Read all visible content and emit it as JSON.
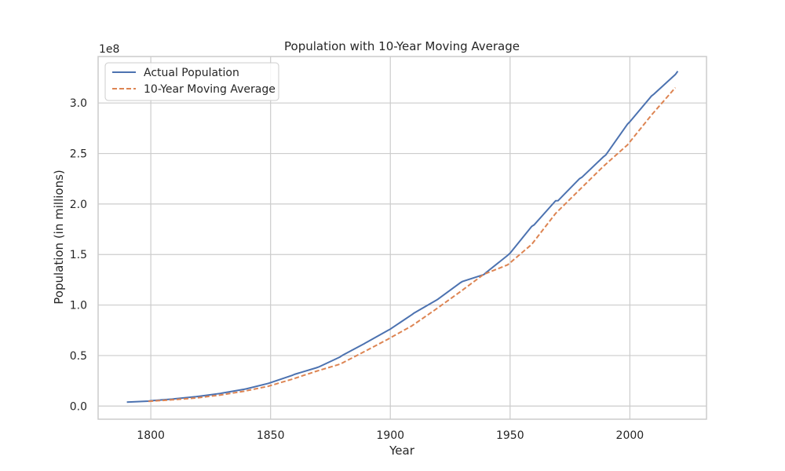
{
  "chart_data": {
    "type": "line",
    "title": "Population with 10-Year Moving Average",
    "xlabel": "Year",
    "ylabel": "Population (in millions)",
    "y_offset_label": "1e8",
    "xlim": [
      1778,
      2032
    ],
    "ylim": [
      -13000000,
      346000000
    ],
    "xticks": [
      1800,
      1850,
      1900,
      1950,
      2000
    ],
    "yticks": [
      0,
      50000000,
      100000000,
      150000000,
      200000000,
      250000000,
      300000000
    ],
    "ytick_labels": [
      "0.0",
      "0.5",
      "1.0",
      "1.5",
      "2.0",
      "2.5",
      "3.0"
    ],
    "grid": true,
    "legend": "upper left",
    "series": [
      {
        "name": "Actual Population",
        "color": "#4c72b0",
        "style": "solid",
        "x": [
          1790,
          1799,
          1800,
          1809,
          1810,
          1819,
          1820,
          1829,
          1830,
          1839,
          1840,
          1849,
          1850,
          1859,
          1860,
          1869,
          1870,
          1879,
          1880,
          1889,
          1890,
          1899,
          1900,
          1909,
          1910,
          1919,
          1920,
          1929,
          1930,
          1939,
          1940,
          1949,
          1950,
          1959,
          1960,
          1969,
          1970,
          1979,
          1980,
          1989,
          1990,
          1999,
          2000,
          2009,
          2010,
          2019,
          2020
        ],
        "y": [
          3900000,
          4900000,
          5300000,
          6900000,
          7200000,
          9300000,
          9600000,
          12500000,
          12900000,
          16600000,
          17100000,
          22400000,
          23200000,
          30400000,
          31400000,
          37800000,
          38600000,
          48600000,
          50200000,
          61600000,
          63000000,
          74900000,
          76200000,
          90500000,
          92200000,
          104500000,
          106000000,
          121700000,
          123200000,
          130100000,
          132200000,
          149200000,
          151300000,
          177800000,
          179300000,
          203200000,
          203300000,
          225100000,
          226500000,
          246800000,
          248700000,
          279000000,
          281400000,
          306800000,
          308700000,
          328200000,
          331500000
        ]
      },
      {
        "name": "10-Year Moving Average",
        "color": "#dd8452",
        "style": "dashed",
        "x": [
          1799,
          1809,
          1819,
          1829,
          1839,
          1849,
          1859,
          1869,
          1879,
          1889,
          1899,
          1909,
          1919,
          1929,
          1939,
          1949,
          1959,
          1969,
          1979,
          1989,
          1999,
          2009,
          2019
        ],
        "y": [
          4700000,
          6200000,
          8000000,
          10900000,
          14700000,
          19600000,
          26600000,
          34400000,
          41500000,
          53700000,
          66200000,
          79400000,
          95800000,
          112800000,
          130400000,
          139800000,
          160000000,
          190700000,
          214100000,
          237400000,
          258500000,
          288000000,
          315200000
        ]
      }
    ]
  }
}
